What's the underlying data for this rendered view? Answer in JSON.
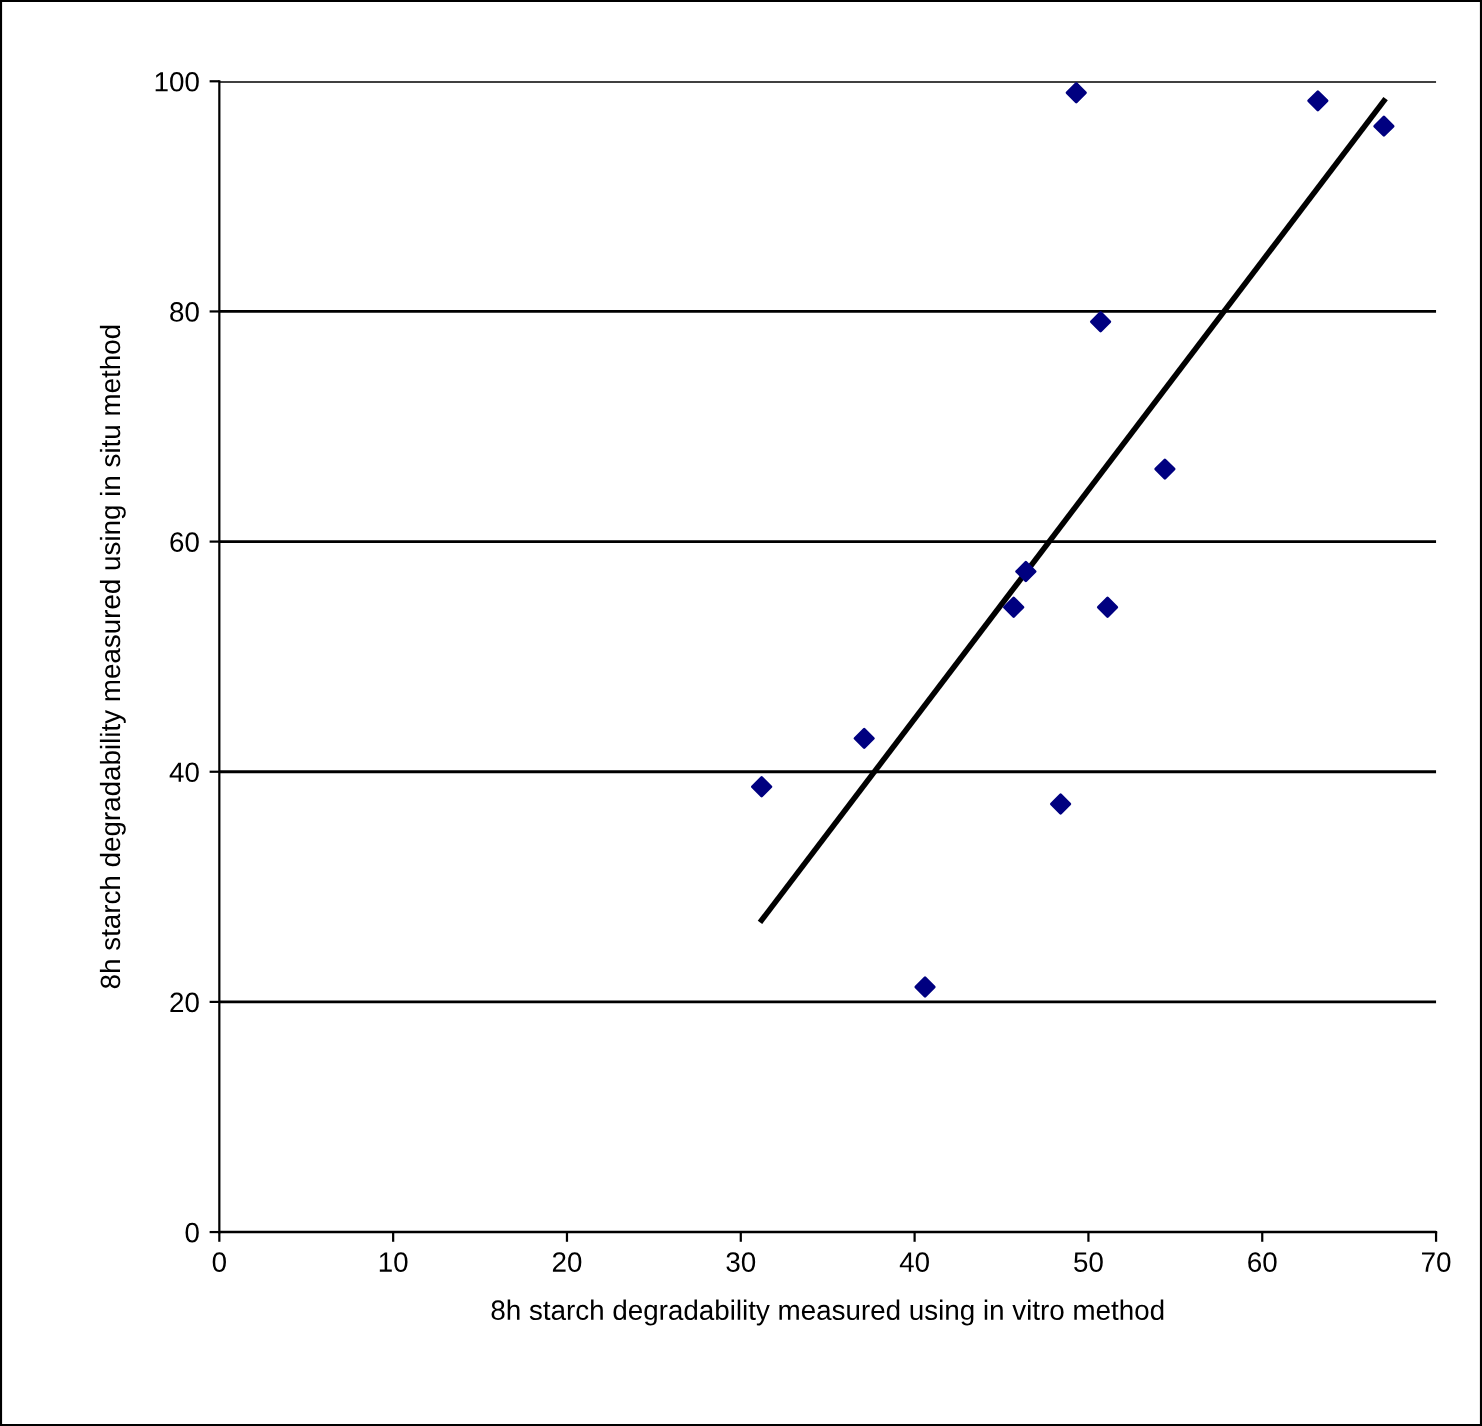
{
  "chart_data": {
    "type": "scatter",
    "xlabel": "8h starch degradability measured using in vitro method",
    "ylabel": "8h starch degradability measured using in situ method",
    "xlim": [
      0,
      70
    ],
    "ylim": [
      0,
      100
    ],
    "xticks": [
      0,
      10,
      20,
      30,
      40,
      50,
      60,
      70
    ],
    "yticks": [
      0,
      20,
      40,
      60,
      80,
      100
    ],
    "grid": "y",
    "series": [
      {
        "marker": "diamond",
        "color": "#000080",
        "x": [
          49.3,
          63.2,
          67.0,
          50.7,
          54.4,
          46.4,
          45.7,
          51.1,
          37.1,
          31.2,
          48.4,
          40.6
        ],
        "values": [
          99.0,
          98.3,
          96.1,
          79.1,
          66.3,
          57.4,
          54.3,
          54.3,
          42.9,
          38.7,
          37.2,
          21.3
        ]
      },
      {
        "type": "line",
        "marker": "none",
        "color": "#000000",
        "line_style": "solid",
        "x": [
          31.2,
          67.0
        ],
        "values": [
          27.1,
          98.3
        ]
      }
    ]
  }
}
